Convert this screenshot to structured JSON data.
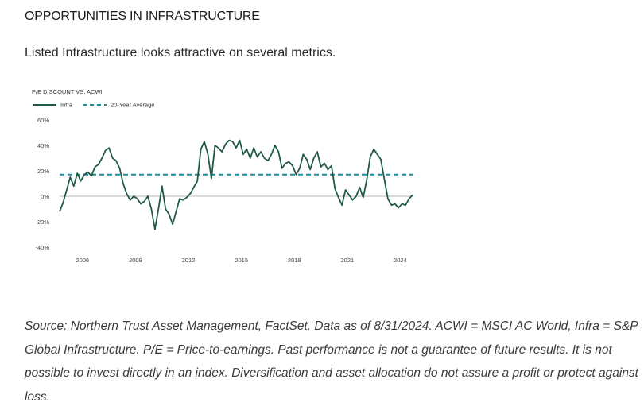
{
  "header": {
    "title": "OPPORTUNITIES IN INFRASTRUCTURE",
    "subtitle": "Listed Infrastructure looks attractive on several metrics."
  },
  "footnote": "Source: Northern Trust Asset Management, FactSet. Data as of 8/31/2024. ACWI = MSCI AC World, Infra = S&P Global Infrastructure. P/E = Price-to-earnings. Past performance is not a guarantee of future results. It is not possible to invest directly in an index. Diversification and asset allocation do not assure a profit or protect against loss.",
  "colors": {
    "series": "#1f5a45",
    "average": "#1b8a9a",
    "zero_line": "#b5b5b5",
    "tick_text": "#444444"
  },
  "chart_data": {
    "type": "line",
    "title": "P/E DISCOUNT VS. ACWI",
    "legend": {
      "position": "top-left",
      "items": [
        {
          "label": "Infra",
          "style": "solid"
        },
        {
          "label": "20-Year Average",
          "style": "dashed"
        }
      ]
    },
    "x_ticks": [
      "2006",
      "2009",
      "2012",
      "2015",
      "2018",
      "2021",
      "2024"
    ],
    "y_ticks": [
      "60%",
      "40%",
      "20%",
      "0%",
      "-20%",
      "-40%"
    ],
    "xlim": [
      2004.7,
      2024.7
    ],
    "ylim": [
      -40,
      60
    ],
    "grid": false,
    "average": 17,
    "series": [
      {
        "name": "Infra",
        "x": [
          2004.7,
          2004.9,
          2005.1,
          2005.3,
          2005.5,
          2005.7,
          2005.9,
          2006.1,
          2006.3,
          2006.5,
          2006.7,
          2006.9,
          2007.1,
          2007.3,
          2007.5,
          2007.7,
          2007.9,
          2008.1,
          2008.3,
          2008.5,
          2008.7,
          2008.9,
          2009.1,
          2009.3,
          2009.5,
          2009.7,
          2009.9,
          2010.1,
          2010.3,
          2010.5,
          2010.7,
          2010.9,
          2011.1,
          2011.3,
          2011.5,
          2011.7,
          2011.9,
          2012.1,
          2012.3,
          2012.5,
          2012.7,
          2012.9,
          2013.1,
          2013.3,
          2013.5,
          2013.7,
          2013.9,
          2014.1,
          2014.3,
          2014.5,
          2014.7,
          2014.9,
          2015.1,
          2015.3,
          2015.5,
          2015.7,
          2015.9,
          2016.1,
          2016.3,
          2016.5,
          2016.7,
          2016.9,
          2017.1,
          2017.3,
          2017.5,
          2017.7,
          2017.9,
          2018.1,
          2018.3,
          2018.5,
          2018.7,
          2018.9,
          2019.1,
          2019.3,
          2019.5,
          2019.7,
          2019.9,
          2020.1,
          2020.3,
          2020.5,
          2020.7,
          2020.9,
          2021.1,
          2021.3,
          2021.5,
          2021.7,
          2021.9,
          2022.1,
          2022.3,
          2022.5,
          2022.7,
          2022.9,
          2023.1,
          2023.3,
          2023.5,
          2023.7,
          2023.9,
          2024.1,
          2024.3,
          2024.5,
          2024.7
        ],
        "values": [
          -12,
          -5,
          5,
          15,
          8,
          18,
          12,
          17,
          19,
          16,
          23,
          25,
          30,
          36,
          38,
          30,
          28,
          22,
          10,
          2,
          -3,
          0,
          -2,
          -6,
          -4,
          0,
          -10,
          -26,
          -10,
          8,
          -10,
          -14,
          -22,
          -12,
          -2,
          -3,
          -1,
          2,
          7,
          12,
          37,
          43,
          33,
          14,
          40,
          38,
          35,
          41,
          44,
          43,
          38,
          44,
          33,
          37,
          30,
          38,
          31,
          35,
          30,
          28,
          33,
          40,
          35,
          22,
          26,
          27,
          24,
          17,
          22,
          33,
          29,
          21,
          30,
          35,
          23,
          26,
          21,
          24,
          6,
          -1,
          -7,
          5,
          1,
          -3,
          0,
          7,
          -1,
          13,
          31,
          37,
          33,
          29,
          13,
          -2,
          -7,
          -6,
          -9,
          -6,
          -7,
          -2,
          1
        ]
      }
    ]
  }
}
